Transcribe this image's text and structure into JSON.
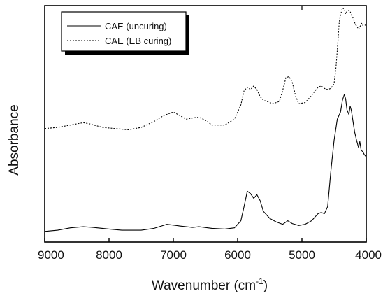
{
  "chart_data": {
    "type": "line",
    "xlabel": "Wavenumber (cm",
    "xlabel_sup": "-1",
    "xlabel_close": ")",
    "ylabel": "Absorbance",
    "xlim": [
      9000,
      4000
    ],
    "x_reversed": true,
    "ylim": [
      0,
      1
    ],
    "x_ticks": [
      9000,
      8000,
      7000,
      6000,
      5000,
      4000
    ],
    "x_tick_labels": [
      "9000",
      "8000",
      "7000",
      "6000",
      "5000",
      "4000"
    ],
    "y_tick_labels_shown": false,
    "grid": false,
    "legend_position": "top-left",
    "series": [
      {
        "name": "CAE (uncuring)",
        "style": "solid",
        "color": "#000000",
        "x": [
          9000,
          8800,
          8600,
          8400,
          8250,
          8000,
          7800,
          7500,
          7300,
          7100,
          6900,
          6700,
          6600,
          6400,
          6200,
          6050,
          5950,
          5900,
          5850,
          5800,
          5750,
          5700,
          5650,
          5600,
          5500,
          5400,
          5300,
          5220,
          5150,
          5050,
          4950,
          4850,
          4750,
          4700,
          4650,
          4600,
          4550,
          4500,
          4450,
          4400,
          4370,
          4340,
          4320,
          4300,
          4270,
          4250,
          4230,
          4200,
          4180,
          4150,
          4120,
          4100,
          4080,
          4050,
          4030,
          4000
        ],
        "y": [
          0.045,
          0.05,
          0.06,
          0.065,
          0.062,
          0.055,
          0.05,
          0.05,
          0.058,
          0.075,
          0.068,
          0.062,
          0.065,
          0.058,
          0.055,
          0.06,
          0.09,
          0.15,
          0.215,
          0.205,
          0.185,
          0.2,
          0.175,
          0.13,
          0.1,
          0.085,
          0.075,
          0.09,
          0.078,
          0.07,
          0.075,
          0.09,
          0.12,
          0.125,
          0.12,
          0.15,
          0.3,
          0.43,
          0.52,
          0.55,
          0.6,
          0.625,
          0.605,
          0.56,
          0.54,
          0.575,
          0.555,
          0.5,
          0.465,
          0.43,
          0.4,
          0.425,
          0.39,
          0.38,
          0.37,
          0.36
        ]
      },
      {
        "name": "CAE (EB curing)",
        "style": "dotted",
        "color": "#000000",
        "x": [
          9000,
          8800,
          8600,
          8400,
          8300,
          8100,
          7900,
          7700,
          7500,
          7300,
          7150,
          7000,
          6900,
          6800,
          6700,
          6600,
          6500,
          6400,
          6300,
          6200,
          6050,
          5950,
          5900,
          5850,
          5800,
          5750,
          5700,
          5650,
          5600,
          5550,
          5450,
          5350,
          5300,
          5250,
          5200,
          5150,
          5100,
          5050,
          4950,
          4850,
          4750,
          4700,
          4650,
          4600,
          4550,
          4500,
          4470,
          4440,
          4420,
          4400,
          4370,
          4340,
          4320,
          4300,
          4270,
          4250,
          4220,
          4200,
          4170,
          4150,
          4120,
          4100,
          4070,
          4050,
          4030,
          4000
        ],
        "y": [
          0.48,
          0.485,
          0.495,
          0.505,
          0.5,
          0.485,
          0.48,
          0.475,
          0.485,
          0.51,
          0.535,
          0.55,
          0.535,
          0.52,
          0.525,
          0.528,
          0.515,
          0.495,
          0.495,
          0.495,
          0.52,
          0.58,
          0.64,
          0.655,
          0.645,
          0.66,
          0.645,
          0.615,
          0.6,
          0.595,
          0.585,
          0.595,
          0.64,
          0.695,
          0.7,
          0.675,
          0.62,
          0.585,
          0.59,
          0.62,
          0.655,
          0.66,
          0.65,
          0.645,
          0.65,
          0.67,
          0.74,
          0.85,
          0.93,
          0.96,
          0.99,
          0.985,
          0.965,
          0.975,
          0.98,
          0.975,
          0.955,
          0.945,
          0.92,
          0.915,
          0.9,
          0.91,
          0.925,
          0.915,
          0.915,
          0.92
        ]
      }
    ]
  }
}
